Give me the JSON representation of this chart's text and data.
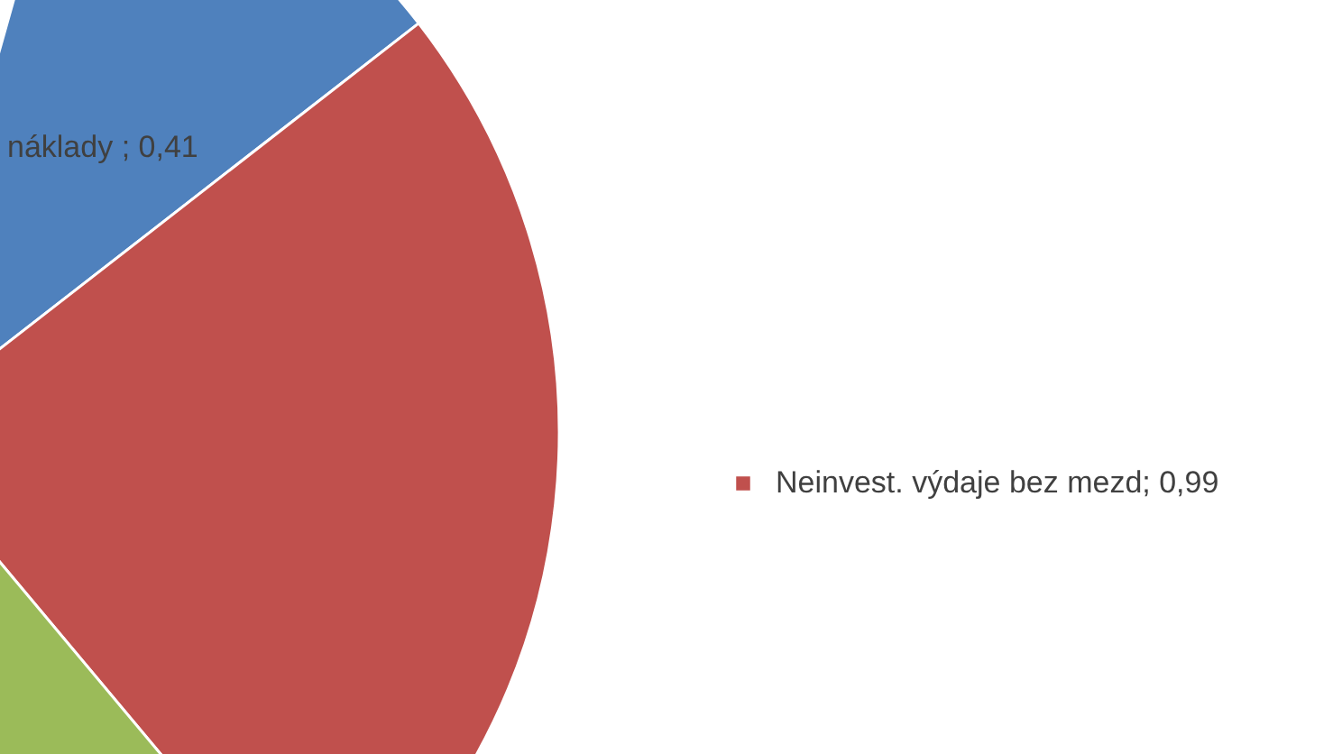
{
  "chart_data": {
    "type": "pie",
    "categories": [
      "náklady ",
      "Neinvest. výdaje bez mezd",
      null
    ],
    "values": [
      0.41,
      0.99,
      0.6
    ],
    "colors": [
      "#4f81bd",
      "#c0504d",
      "#9bbb59"
    ],
    "value_labels": [
      "0,41",
      "0,99",
      null
    ]
  }
}
